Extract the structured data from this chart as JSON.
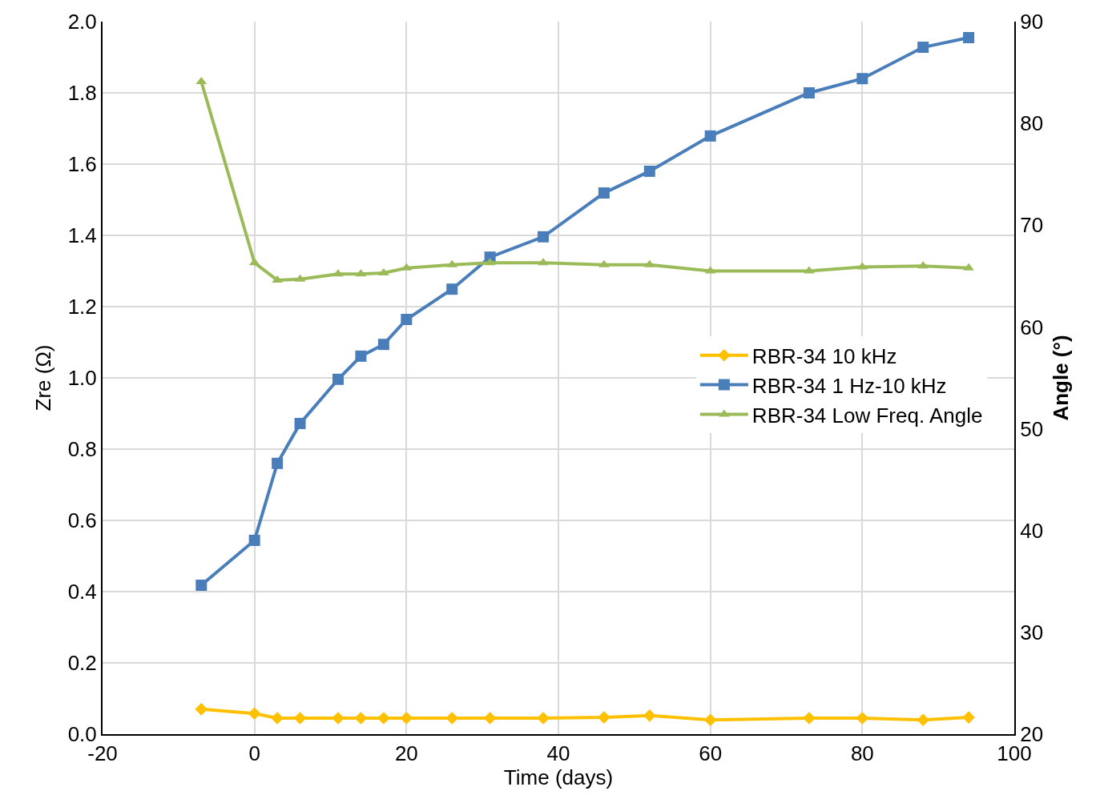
{
  "chart_data": {
    "type": "line",
    "xlabel": "Time (days)",
    "ylabel": "Zre (Ω)",
    "y2label": "Angle (°)",
    "x": [
      -7,
      0,
      3,
      6,
      11,
      14,
      17,
      20,
      26,
      31,
      38,
      46,
      52,
      60,
      73,
      80,
      88,
      94
    ],
    "series": [
      {
        "name": "RBR-34 10 kHz",
        "color": "#ffc000",
        "marker": "diamond",
        "values": [
          0.07,
          0.058,
          0.045,
          0.045,
          0.045,
          0.045,
          0.045,
          0.045,
          0.045,
          0.045,
          0.045,
          0.047,
          0.052,
          0.04,
          0.045,
          0.045,
          0.04,
          0.047
        ]
      },
      {
        "name": "RBR-34 1 Hz-10 kHz",
        "color": "#4a7ebb",
        "marker": "square",
        "values": [
          0.418,
          0.544,
          0.76,
          0.872,
          0.996,
          1.061,
          1.094,
          1.164,
          1.249,
          1.339,
          1.396,
          1.519,
          1.58,
          1.679,
          1.8,
          1.84,
          1.928,
          1.955
        ]
      },
      {
        "name": "RBR-34 Low Freq. Angle",
        "color": "#9bbb59",
        "marker": "triangle",
        "axis": "y2",
        "values": [
          84.1,
          66.3,
          64.6,
          64.7,
          65.2,
          65.2,
          65.3,
          65.8,
          66.1,
          66.3,
          66.3,
          66.1,
          66.1,
          65.5,
          65.5,
          65.9,
          66.0,
          65.8
        ]
      }
    ],
    "xlim": [
      -20,
      100
    ],
    "xticks": [
      -20,
      0,
      20,
      40,
      60,
      80,
      100
    ],
    "ylim": [
      0,
      2.0
    ],
    "yticks": [
      {
        "value": 0,
        "label": "0.0"
      },
      0.2,
      0.4,
      0.6,
      0.8,
      {
        "value": 1,
        "label": "1.0"
      },
      1.2,
      1.4,
      1.6,
      1.8,
      {
        "value": 2,
        "label": "2.0"
      }
    ],
    "y2lim": [
      20,
      90
    ],
    "y2ticks": [
      20,
      30,
      40,
      50,
      60,
      70,
      80,
      90
    ],
    "grid": true,
    "legend": "right",
    "line_style": "solid"
  }
}
